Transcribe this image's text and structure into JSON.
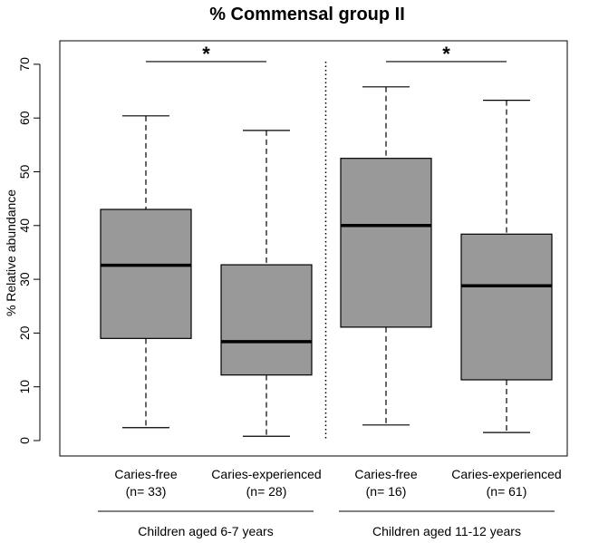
{
  "chart_data": {
    "type": "box",
    "title": "% Commensal group II",
    "ylabel": "% Relative abundance",
    "xlabel": "",
    "ylim": [
      -4,
      75
    ],
    "yticks": [
      0,
      10,
      20,
      30,
      40,
      50,
      60,
      70
    ],
    "grid": false,
    "box_color": "#999999",
    "boxes": [
      {
        "label": "Caries-free",
        "n_label": "(n= 33)",
        "whisker_low": 2.4,
        "q1": 19.0,
        "median": 32.6,
        "q3": 43.0,
        "whisker_high": 60.4
      },
      {
        "label": "Caries-experienced",
        "n_label": "(n= 28)",
        "whisker_low": 0.8,
        "q1": 12.2,
        "median": 18.4,
        "q3": 32.7,
        "whisker_high": 57.7
      },
      {
        "label": "Caries-free",
        "n_label": "(n= 16)",
        "whisker_low": 2.9,
        "q1": 21.1,
        "median": 40.0,
        "q3": 52.5,
        "whisker_high": 65.8
      },
      {
        "label": "Caries-experienced",
        "n_label": "(n= 61)",
        "whisker_low": 1.5,
        "q1": 11.3,
        "median": 28.8,
        "q3": 38.4,
        "whisker_high": 63.3
      }
    ],
    "groups": [
      {
        "label": "Children aged 6-7 years",
        "boxes": [
          0,
          1
        ]
      },
      {
        "label": "Children aged 11-12 years",
        "boxes": [
          2,
          3
        ]
      }
    ],
    "significance": [
      {
        "boxes": [
          0,
          1
        ],
        "y": 70.5,
        "mark": "*"
      },
      {
        "boxes": [
          2,
          3
        ],
        "y": 70.5,
        "mark": "*"
      }
    ]
  }
}
